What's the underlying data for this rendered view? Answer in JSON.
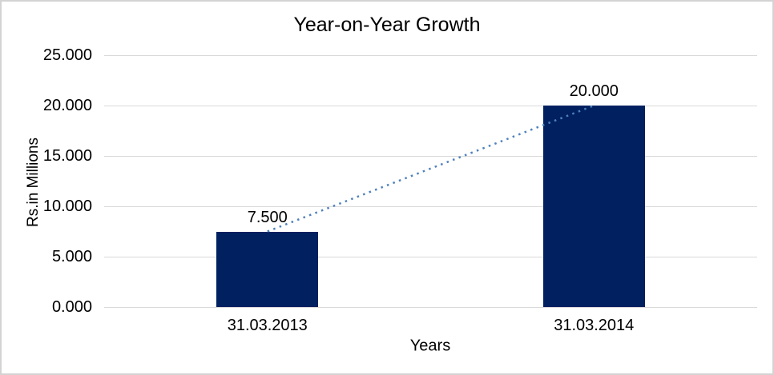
{
  "window": {
    "background": "#FFFFFF",
    "border_color": "#D3D3D3"
  },
  "chart_data": {
    "type": "bar",
    "title": "Year-on-Year Growth",
    "xlabel": "Years",
    "ylabel": "Rs.in Millions",
    "categories": [
      "31.03.2013",
      "31.03.2014"
    ],
    "values": [
      7.5,
      20
    ],
    "value_labels": [
      "7.500",
      "20.000"
    ],
    "ylim": [
      0,
      25
    ],
    "yticks": [
      {
        "value": 0,
        "label": "0.000"
      },
      {
        "value": 5,
        "label": "5.000"
      },
      {
        "value": 10,
        "label": "10.000"
      },
      {
        "value": 15,
        "label": "15.000"
      },
      {
        "value": 20,
        "label": "20.000"
      },
      {
        "value": 25,
        "label": "25.000"
      }
    ],
    "grid": true,
    "legend": "none",
    "trendline": {
      "type": "linear",
      "style": "dotted"
    },
    "colors": {
      "bar": "#002060",
      "gridline": "#D9D9D9",
      "axis_line": "#D9D9D9",
      "trendline": "#4E81BD",
      "text": "#000000"
    }
  }
}
